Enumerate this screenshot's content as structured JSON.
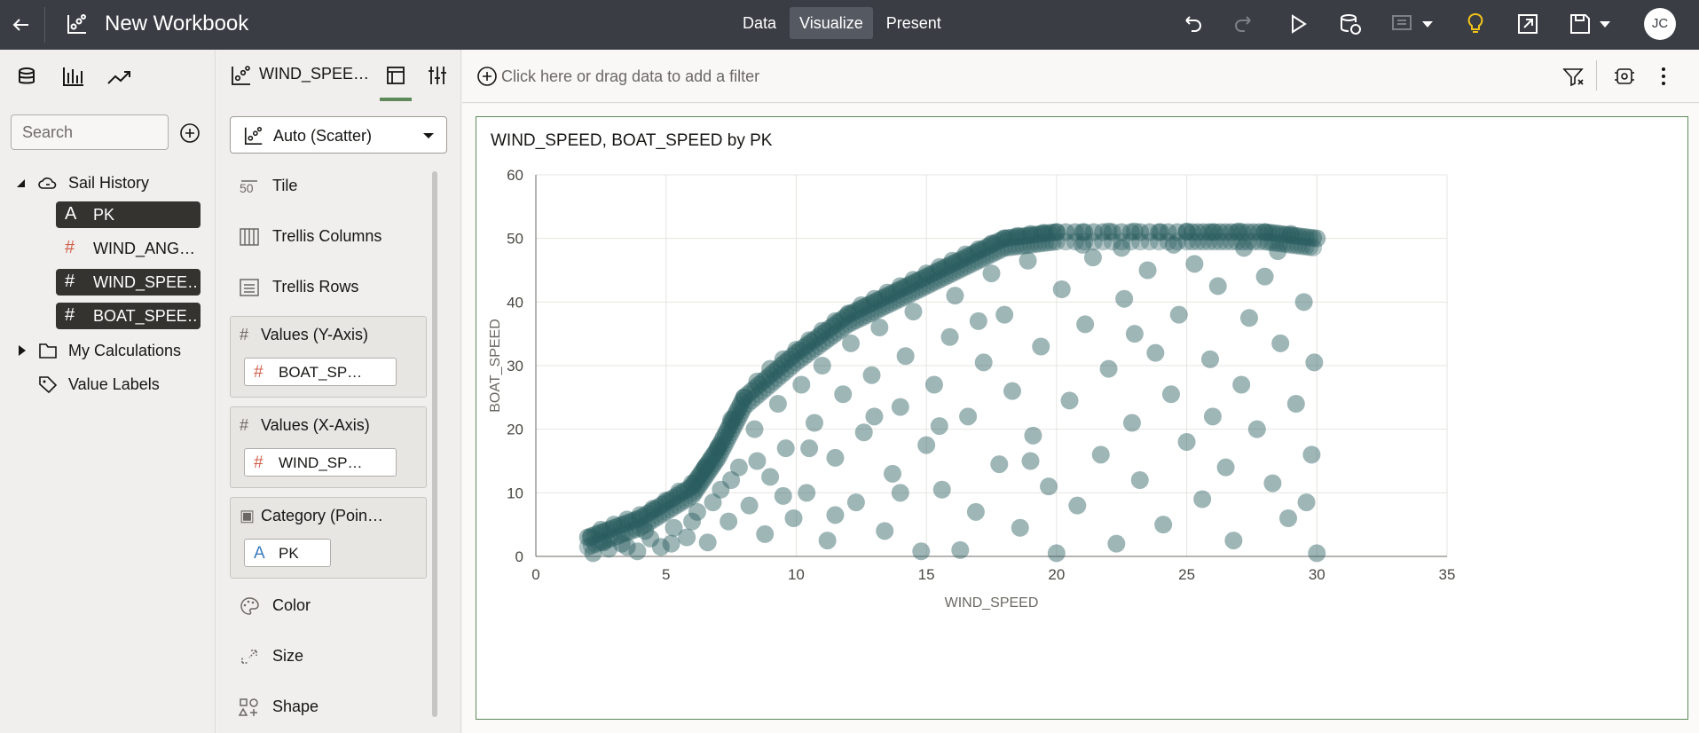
{
  "topbar": {
    "title": "New Workbook",
    "modes": [
      "Data",
      "Visualize",
      "Present"
    ],
    "active_mode": "Visualize",
    "avatar": "JC",
    "icons": [
      "back-arrow-icon",
      "workbook-icon",
      "undo-icon",
      "redo-icon",
      "play-icon",
      "refresh-data-icon",
      "comment-icon",
      "insights-lightbulb-icon",
      "export-icon",
      "save-icon"
    ]
  },
  "datapanel": {
    "search_placeholder": "Search",
    "tree": {
      "source": "Sail History",
      "columns": [
        {
          "symbol": "A",
          "label": "PK",
          "selected": true
        },
        {
          "symbol": "#",
          "label": "WIND_ANG…",
          "selected": false
        },
        {
          "symbol": "#",
          "label": "WIND_SPEE…",
          "selected": true
        },
        {
          "symbol": "#",
          "label": "BOAT_SPEE…",
          "selected": true
        }
      ],
      "calculations": "My Calculations",
      "value_labels": "Value Labels"
    }
  },
  "grammar": {
    "viz_name": "WIND_SPEE…",
    "viz_type": "Auto (Scatter)",
    "items": {
      "tile": "Tile",
      "trellis_columns": "Trellis Columns",
      "trellis_rows": "Trellis Rows",
      "color": "Color",
      "size": "Size",
      "shape": "Shape"
    },
    "y_axis": {
      "label": "Values (Y-Axis)",
      "chip": "BOAT_SP…"
    },
    "x_axis": {
      "label": "Values (X-Axis)",
      "chip": "WIND_SP…"
    },
    "category": {
      "label": "Category (Poin…",
      "chip": "PK"
    }
  },
  "filterbar": {
    "hint": "Click here or drag data to add a filter"
  },
  "colors": {
    "accent": "#5e8a5a",
    "point": "#2b5e60",
    "topbar": "#3a3d44"
  },
  "chart_data": {
    "type": "scatter",
    "title": "WIND_SPEED, BOAT_SPEED by PK",
    "xlabel": "WIND_SPEED",
    "ylabel": "BOAT_SPEED",
    "xlim": [
      0,
      35
    ],
    "ylim": [
      0,
      60
    ],
    "xticks": [
      0,
      5,
      10,
      15,
      20,
      25,
      30,
      35
    ],
    "yticks": [
      0,
      10,
      20,
      30,
      40,
      50,
      60
    ],
    "grid": true,
    "series": [
      {
        "envelope": [
          [
            2,
            3
          ],
          [
            4,
            6
          ],
          [
            6,
            11
          ],
          [
            7,
            17
          ],
          [
            8,
            25
          ],
          [
            10,
            32
          ],
          [
            12,
            38
          ],
          [
            14,
            42
          ],
          [
            16,
            46
          ],
          [
            18,
            50
          ],
          [
            20,
            51
          ],
          [
            25,
            51
          ],
          [
            28,
            51
          ],
          [
            30,
            50
          ]
        ],
        "points": [
          [
            2.1,
            3.0
          ],
          [
            2.5,
            4.2
          ],
          [
            3.0,
            5.0
          ],
          [
            3.5,
            5.8
          ],
          [
            4.0,
            6.5
          ],
          [
            4.5,
            7.5
          ],
          [
            5.0,
            8.8
          ],
          [
            5.5,
            10.2
          ],
          [
            6.0,
            11.5
          ],
          [
            6.5,
            14.0
          ],
          [
            7.0,
            17.2
          ],
          [
            7.5,
            21.5
          ],
          [
            8.0,
            25.0
          ],
          [
            8.5,
            27.5
          ],
          [
            9.0,
            29.5
          ],
          [
            9.5,
            31.0
          ],
          [
            10.0,
            32.5
          ],
          [
            10.5,
            34.0
          ],
          [
            11.0,
            35.5
          ],
          [
            11.5,
            37.0
          ],
          [
            12.0,
            38.2
          ],
          [
            12.5,
            39.5
          ],
          [
            13.0,
            40.5
          ],
          [
            13.5,
            41.5
          ],
          [
            14.0,
            42.5
          ],
          [
            14.5,
            43.5
          ],
          [
            15.0,
            44.5
          ],
          [
            15.5,
            45.5
          ],
          [
            16.0,
            46.5
          ],
          [
            16.5,
            47.5
          ],
          [
            17.0,
            48.3
          ],
          [
            17.5,
            49.2
          ],
          [
            18.0,
            50.0
          ],
          [
            18.5,
            50.4
          ],
          [
            19.0,
            50.7
          ],
          [
            19.5,
            50.9
          ],
          [
            20.0,
            51.0
          ],
          [
            21.0,
            51.0
          ],
          [
            22.0,
            51.1
          ],
          [
            23.0,
            51.1
          ],
          [
            24.0,
            51.0
          ],
          [
            25.0,
            51.1
          ],
          [
            26.0,
            51.0
          ],
          [
            27.0,
            51.1
          ],
          [
            28.0,
            51.0
          ],
          [
            29.0,
            50.7
          ],
          [
            30.0,
            50.0
          ],
          [
            2.2,
            0.5
          ],
          [
            2.8,
            1.2
          ],
          [
            3.3,
            2.0
          ],
          [
            3.9,
            0.8
          ],
          [
            4.4,
            2.8
          ],
          [
            4.8,
            1.5
          ],
          [
            5.3,
            4.5
          ],
          [
            5.8,
            3.0
          ],
          [
            6.2,
            7.0
          ],
          [
            6.6,
            2.2
          ],
          [
            7.1,
            10.5
          ],
          [
            7.4,
            5.5
          ],
          [
            7.8,
            14.0
          ],
          [
            8.2,
            8.0
          ],
          [
            8.4,
            20.0
          ],
          [
            8.8,
            3.5
          ],
          [
            9.0,
            12.5
          ],
          [
            9.3,
            24.0
          ],
          [
            9.6,
            17.0
          ],
          [
            9.9,
            6.0
          ],
          [
            10.2,
            27.0
          ],
          [
            10.4,
            10.0
          ],
          [
            10.7,
            21.0
          ],
          [
            11.0,
            30.0
          ],
          [
            11.2,
            2.5
          ],
          [
            11.5,
            15.5
          ],
          [
            11.8,
            25.5
          ],
          [
            12.1,
            33.5
          ],
          [
            12.3,
            8.5
          ],
          [
            12.6,
            19.5
          ],
          [
            12.9,
            28.5
          ],
          [
            13.2,
            36.0
          ],
          [
            13.4,
            4.0
          ],
          [
            13.7,
            13.0
          ],
          [
            14.0,
            23.5
          ],
          [
            14.2,
            31.5
          ],
          [
            14.5,
            38.5
          ],
          [
            14.8,
            0.8
          ],
          [
            15.0,
            17.5
          ],
          [
            15.3,
            27.0
          ],
          [
            15.6,
            10.5
          ],
          [
            15.9,
            34.5
          ],
          [
            16.1,
            41.0
          ],
          [
            16.3,
            1.0
          ],
          [
            16.6,
            22.0
          ],
          [
            16.9,
            7.0
          ],
          [
            17.2,
            30.5
          ],
          [
            17.5,
            44.5
          ],
          [
            17.8,
            14.5
          ],
          [
            18.0,
            38.0
          ],
          [
            18.3,
            26.0
          ],
          [
            18.6,
            4.5
          ],
          [
            18.9,
            46.5
          ],
          [
            19.1,
            19.0
          ],
          [
            19.4,
            33.0
          ],
          [
            19.7,
            11.0
          ],
          [
            20.0,
            0.5
          ],
          [
            20.2,
            42.0
          ],
          [
            20.5,
            24.5
          ],
          [
            20.8,
            8.0
          ],
          [
            21.1,
            36.5
          ],
          [
            21.4,
            47.0
          ],
          [
            21.7,
            16.0
          ],
          [
            22.0,
            29.5
          ],
          [
            22.3,
            2.0
          ],
          [
            22.6,
            40.5
          ],
          [
            22.9,
            21.0
          ],
          [
            23.2,
            12.0
          ],
          [
            23.5,
            45.0
          ],
          [
            23.8,
            32.0
          ],
          [
            24.1,
            5.0
          ],
          [
            24.4,
            25.5
          ],
          [
            24.7,
            38.0
          ],
          [
            25.0,
            18.0
          ],
          [
            25.3,
            46.0
          ],
          [
            25.6,
            9.0
          ],
          [
            25.9,
            31.0
          ],
          [
            26.2,
            42.5
          ],
          [
            26.5,
            14.0
          ],
          [
            26.8,
            2.5
          ],
          [
            27.1,
            27.0
          ],
          [
            27.4,
            37.5
          ],
          [
            27.7,
            20.0
          ],
          [
            28.0,
            44.0
          ],
          [
            28.3,
            11.5
          ],
          [
            28.6,
            33.5
          ],
          [
            28.9,
            6.0
          ],
          [
            29.2,
            24.0
          ],
          [
            29.5,
            40.0
          ],
          [
            29.8,
            16.0
          ],
          [
            30.0,
            0.5
          ],
          [
            29.9,
            30.5
          ],
          [
            29.6,
            8.5
          ],
          [
            28.5,
            48.0
          ],
          [
            27.2,
            48.5
          ],
          [
            24.5,
            49.0
          ],
          [
            22.5,
            48.5
          ],
          [
            21.0,
            49.0
          ],
          [
            26.0,
            22.0
          ],
          [
            23.0,
            35.0
          ],
          [
            19.0,
            15.0
          ],
          [
            17.0,
            37.0
          ],
          [
            15.5,
            20.5
          ],
          [
            14.0,
            10.0
          ],
          [
            13.0,
            22.0
          ],
          [
            11.5,
            6.5
          ],
          [
            10.5,
            17.0
          ],
          [
            9.5,
            9.5
          ],
          [
            8.5,
            15.0
          ],
          [
            7.5,
            12.0
          ],
          [
            6.8,
            8.5
          ],
          [
            6.0,
            5.5
          ],
          [
            5.2,
            2.0
          ],
          [
            4.2,
            4.0
          ],
          [
            3.5,
            1.5
          ],
          [
            2.6,
            2.2
          ]
        ]
      }
    ]
  }
}
